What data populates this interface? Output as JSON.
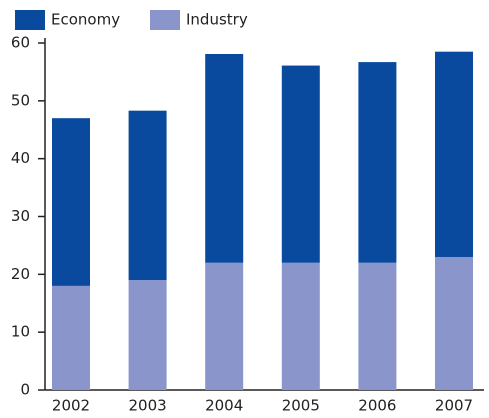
{
  "chart_data": {
    "type": "stacked_bar",
    "categories": [
      "2002",
      "2003",
      "2004",
      "2005",
      "2006",
      "2007"
    ],
    "series": [
      {
        "name": "Industry",
        "color": "#8a96cb",
        "values": [
          18,
          19,
          22,
          22,
          22,
          23
        ]
      },
      {
        "name": "Economy",
        "color": "#0a4a9e",
        "values": [
          29,
          29.3,
          36.1,
          34.1,
          34.7,
          35.5
        ]
      }
    ],
    "ylim": [
      0,
      60
    ],
    "yticks": [
      0,
      10,
      20,
      30,
      40,
      50,
      60
    ]
  }
}
